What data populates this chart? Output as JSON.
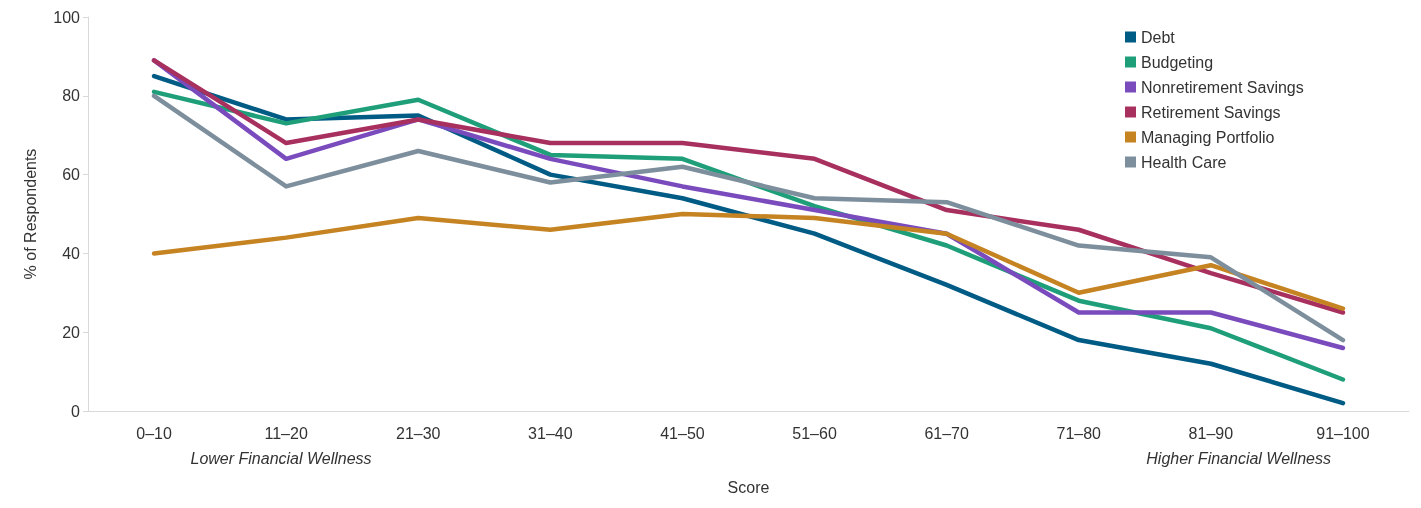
{
  "chart_data": {
    "type": "line",
    "ylabel": "% of Respondents",
    "xlabel": "Score",
    "categories": [
      "0–10",
      "11–20",
      "21–30",
      "31–40",
      "41–50",
      "51–60",
      "61–70",
      "71–80",
      "81–90",
      "91–100"
    ],
    "ylim": [
      0,
      100
    ],
    "yticks": [
      0,
      20,
      40,
      60,
      80,
      100
    ],
    "grid": false,
    "legend": "top right",
    "marker": "none",
    "line_style": "solid",
    "annotations": [
      "Lower Financial Wellness",
      "Higher Financial Wellness"
    ],
    "series": [
      {
        "name": "Debt",
        "color": "#005b85",
        "values": [
          85,
          74,
          75,
          60,
          54,
          45,
          32,
          18,
          12,
          2
        ]
      },
      {
        "name": "Budgeting",
        "color": "#1f9e7a",
        "values": [
          81,
          73,
          79,
          65,
          64,
          52,
          42,
          28,
          21,
          8
        ]
      },
      {
        "name": "Nonretirement Savings",
        "color": "#7a4bbd",
        "values": [
          89,
          64,
          74,
          64,
          57,
          51,
          45,
          25,
          25,
          16
        ]
      },
      {
        "name": "Retirement Savings",
        "color": "#a8305e",
        "values": [
          89,
          68,
          74,
          68,
          68,
          64,
          51,
          46,
          35,
          25
        ]
      },
      {
        "name": "Managing Portfolio",
        "color": "#c58322",
        "values": [
          40,
          44,
          49,
          46,
          50,
          49,
          45,
          30,
          37,
          26
        ]
      },
      {
        "name": "Health Care",
        "color": "#7d8e9c",
        "values": [
          80,
          57,
          66,
          58,
          62,
          54,
          53,
          42,
          39,
          18
        ]
      }
    ]
  }
}
